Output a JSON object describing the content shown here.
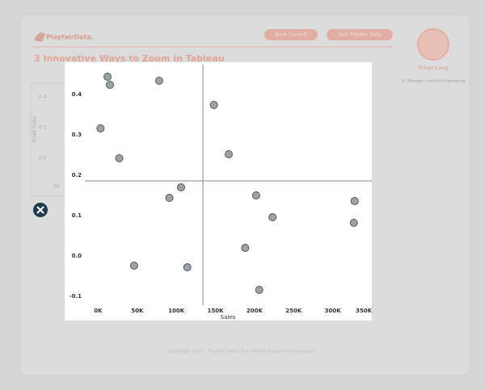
{
  "page": {
    "logo": "PlayfairData.",
    "buttons": [
      "Book Consult",
      "Visit Playfair Data"
    ],
    "article_title": "3 Innovative Ways to Zoom in Tableau",
    "author_name": "Ethan Lang",
    "author_role": "Sr. Manager, Analytics Engineering",
    "background_axis_title": "Profit Ratio",
    "background_ticks": [
      "0.4",
      "0.2",
      "0.0",
      "0K"
    ],
    "footer": "Copyright 2021 · Playfair Data | The Infinite Analytics Consultancy"
  },
  "chart_data": {
    "type": "scatter",
    "x_label": "Sales",
    "color": "#9aa3a8",
    "x": [
      12000,
      15000,
      78000,
      3000,
      27000,
      148000,
      167000,
      106000,
      91000,
      202000,
      223000,
      328000,
      327000,
      188000,
      46000,
      114000,
      206000
    ],
    "values": [
      0.444,
      0.424,
      0.434,
      0.316,
      0.242,
      0.374,
      0.252,
      0.17,
      0.144,
      0.15,
      0.096,
      0.136,
      0.082,
      0.02,
      -0.024,
      -0.028,
      -0.084
    ],
    "x_reference": 134000,
    "y_reference": 0.186,
    "xlim": [
      -17000,
      350000
    ],
    "ylim": [
      -0.122,
      0.474
    ],
    "xticks": [
      {
        "value": 0,
        "label": "0K"
      },
      {
        "value": 50000,
        "label": "50K"
      },
      {
        "value": 100000,
        "label": "100K"
      },
      {
        "value": 150000,
        "label": "150K"
      },
      {
        "value": 200000,
        "label": "200K"
      },
      {
        "value": 250000,
        "label": "250K"
      },
      {
        "value": 300000,
        "label": "300K"
      },
      {
        "value": 350000,
        "label": "350K"
      }
    ],
    "yticks": [
      0.4,
      0.3,
      0.2,
      {
        "value": 0,
        "label": "0.0"
      },
      0.1,
      -0.1
    ]
  }
}
